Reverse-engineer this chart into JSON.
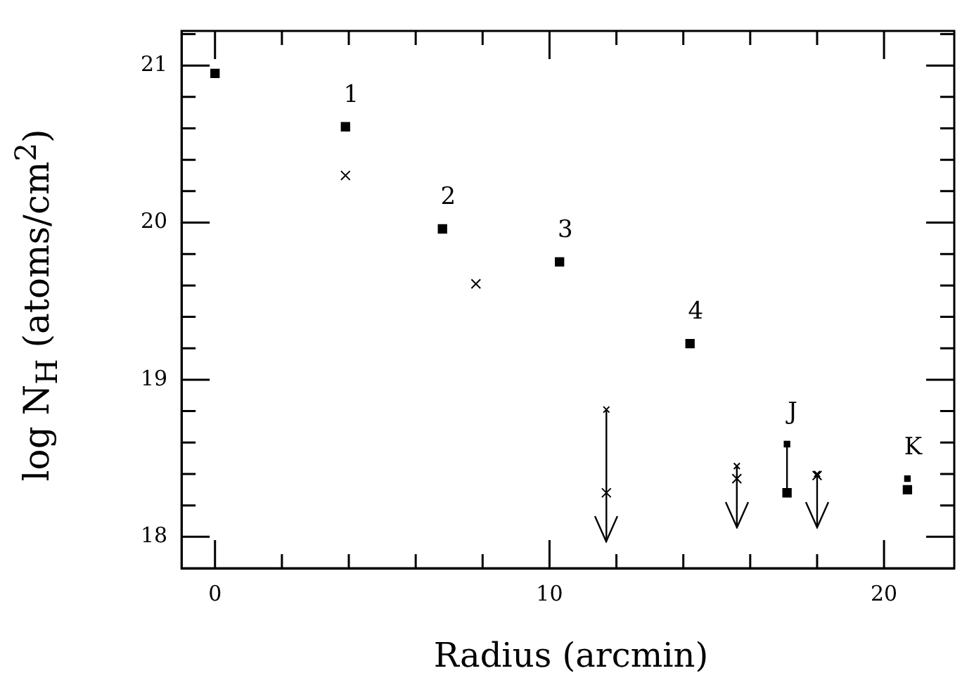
{
  "chart_data": {
    "type": "scatter",
    "xlabel": "Radius (arcmin)",
    "ylabel": "log N$_{H}$ (atoms/cm$^{2}$)",
    "xlim": [
      -1.0,
      22.1
    ],
    "ylim": [
      17.8,
      21.22
    ],
    "xticks": [
      0,
      {
        "value": 2,
        "label": null
      },
      {
        "value": 4,
        "label": null
      },
      {
        "value": 6,
        "label": null
      },
      {
        "value": 8,
        "label": null
      },
      10,
      {
        "value": 12,
        "label": null
      },
      {
        "value": 14,
        "label": null
      },
      {
        "value": 16,
        "label": null
      },
      {
        "value": 18,
        "label": null
      },
      20
    ],
    "yticks": [
      18,
      {
        "value": 18.2,
        "label": null
      },
      {
        "value": 18.4,
        "label": null
      },
      {
        "value": 18.6,
        "label": null
      },
      {
        "value": 18.8,
        "label": null
      },
      19,
      {
        "value": 19.2,
        "label": null
      },
      {
        "value": 19.4,
        "label": null
      },
      {
        "value": 19.6,
        "label": null
      },
      {
        "value": 19.8,
        "label": null
      },
      20,
      {
        "value": 20.2,
        "label": null
      },
      {
        "value": 20.4,
        "label": null
      },
      {
        "value": 20.6,
        "label": null
      },
      {
        "value": 20.8,
        "label": null
      },
      21,
      {
        "value": 21.2,
        "label": null
      }
    ],
    "grid": false,
    "legend": false,
    "series": [
      {
        "color": "#000000",
        "marker": "square",
        "x": [
          0,
          3.9,
          6.8,
          10.3,
          14.2,
          17.1,
          20.7
        ],
        "values": [
          20.95,
          20.61,
          19.96,
          19.75,
          19.23,
          18.28,
          18.3
        ],
        "errors": [
          null,
          null,
          null,
          null,
          null,
          [
            18.28,
            18.59
          ],
          null
        ]
      },
      {
        "color": "#000000",
        "marker": "square",
        "x": [
          17.1,
          20.7
        ],
        "values": [
          18.59,
          18.37
        ]
      },
      {
        "color": "#000000",
        "marker": "cross",
        "x": [
          3.9,
          7.8,
          11.7,
          15.6,
          18.0
        ],
        "values": [
          20.3,
          19.61,
          18.28,
          18.37,
          18.39
        ]
      },
      {
        "color": "#000000",
        "marker": "cross",
        "x": [
          11.7,
          15.6,
          18.0
        ],
        "values": [
          18.81,
          18.45,
          18.4
        ],
        "errors": [
          [
            17.97,
            18.81
          ],
          [
            18.06,
            18.45
          ],
          [
            18.06,
            18.4
          ]
        ]
      }
    ],
    "annotations": [
      {
        "text": "1",
        "x": 3.9,
        "y": 20.61
      },
      {
        "text": "2",
        "x": 6.8,
        "y": 19.96
      },
      {
        "text": "3",
        "x": 10.3,
        "y": 19.75
      },
      {
        "text": "4",
        "x": 14.2,
        "y": 19.23
      },
      {
        "text": "J",
        "x": 17.1,
        "y": 18.59
      },
      {
        "text": "K",
        "x": 20.7,
        "y": 18.37
      }
    ]
  }
}
